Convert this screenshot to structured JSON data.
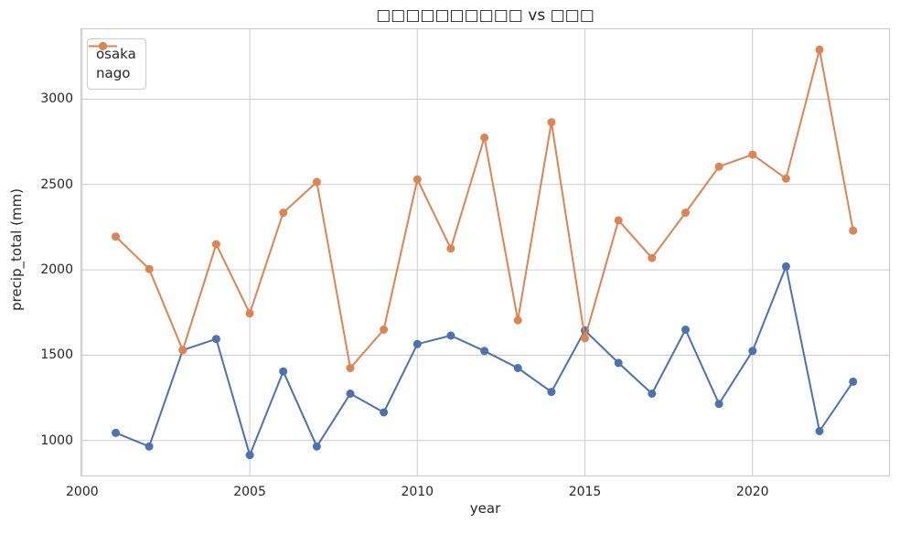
{
  "chart_data": {
    "type": "line",
    "title": "□□□□□□□□□□ vs □□□",
    "xlabel": "year",
    "ylabel": "precip_total (mm)",
    "x": [
      2001,
      2002,
      2003,
      2004,
      2005,
      2006,
      2007,
      2008,
      2009,
      2010,
      2011,
      2012,
      2013,
      2014,
      2015,
      2016,
      2017,
      2018,
      2019,
      2020,
      2021,
      2022,
      2023
    ],
    "series": [
      {
        "name": "osaka",
        "color": "#4C72B0",
        "values": [
          1045,
          965,
          1530,
          1595,
          915,
          1405,
          965,
          1275,
          1165,
          1565,
          1615,
          1525,
          1425,
          1285,
          1645,
          1455,
          1275,
          1650,
          1215,
          1525,
          2020,
          1055,
          1345
        ]
      },
      {
        "name": "nago",
        "color": "#DD8452",
        "values": [
          2195,
          2005,
          1530,
          2150,
          1745,
          2335,
          2515,
          1425,
          1650,
          2530,
          2125,
          2775,
          1705,
          2865,
          1600,
          2290,
          2070,
          2335,
          2605,
          2675,
          2535,
          3290,
          2230
        ]
      }
    ],
    "xlim": [
      1999.95,
      2024.1
    ],
    "ylim": [
      790,
      3415
    ],
    "xticks": [
      2000,
      2005,
      2010,
      2015,
      2020
    ],
    "yticks": [
      1000,
      1500,
      2000,
      2500,
      3000
    ],
    "grid": true,
    "legend_position": "upper left",
    "colors": {
      "grid": "#cccccc",
      "spine": "#c9c9c9",
      "text": "#262626",
      "background": "#ffffff"
    }
  }
}
